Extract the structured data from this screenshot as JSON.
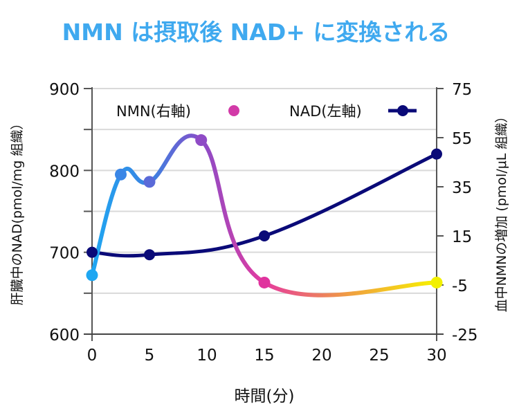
{
  "chart_data": {
    "type": "line",
    "title": "NMN は摂取後 NAD+ に変換される",
    "xlabel": "時間(分)",
    "ylabel_left": "肝臓中のNAD(pmol/mg 組織）",
    "ylabel_right": "血中NMNの増加 (pmol/μL 組織）",
    "xlim": [
      0,
      30
    ],
    "xticks": [
      "0",
      "5",
      "10",
      "15",
      "20",
      "25",
      "30"
    ],
    "ylim_left": [
      600,
      900
    ],
    "yticks_left": [
      "600",
      "700",
      "800",
      "900"
    ],
    "ylim_right": [
      -25,
      75
    ],
    "yticks_right": [
      "-25",
      "-5",
      "15",
      "35",
      "55",
      "75"
    ],
    "grid": "horizontal",
    "legend_position": "top",
    "series": [
      {
        "name": "NMN(右軸)",
        "axis": "right",
        "x": [
          0,
          2.5,
          5,
          9.5,
          15,
          30
        ],
        "values": [
          -1,
          40,
          37,
          54,
          -4,
          -4
        ],
        "colors": [
          "#1ea7f2",
          "#3f7fe0",
          "#8a4cc8",
          "#e63a9e",
          "#f0a040",
          "#f7f200"
        ]
      },
      {
        "name": "NAD(左軸)",
        "axis": "left",
        "x": [
          0,
          5,
          15,
          30
        ],
        "values": [
          700,
          697,
          720,
          820
        ],
        "color": "#0a0a78"
      }
    ]
  }
}
